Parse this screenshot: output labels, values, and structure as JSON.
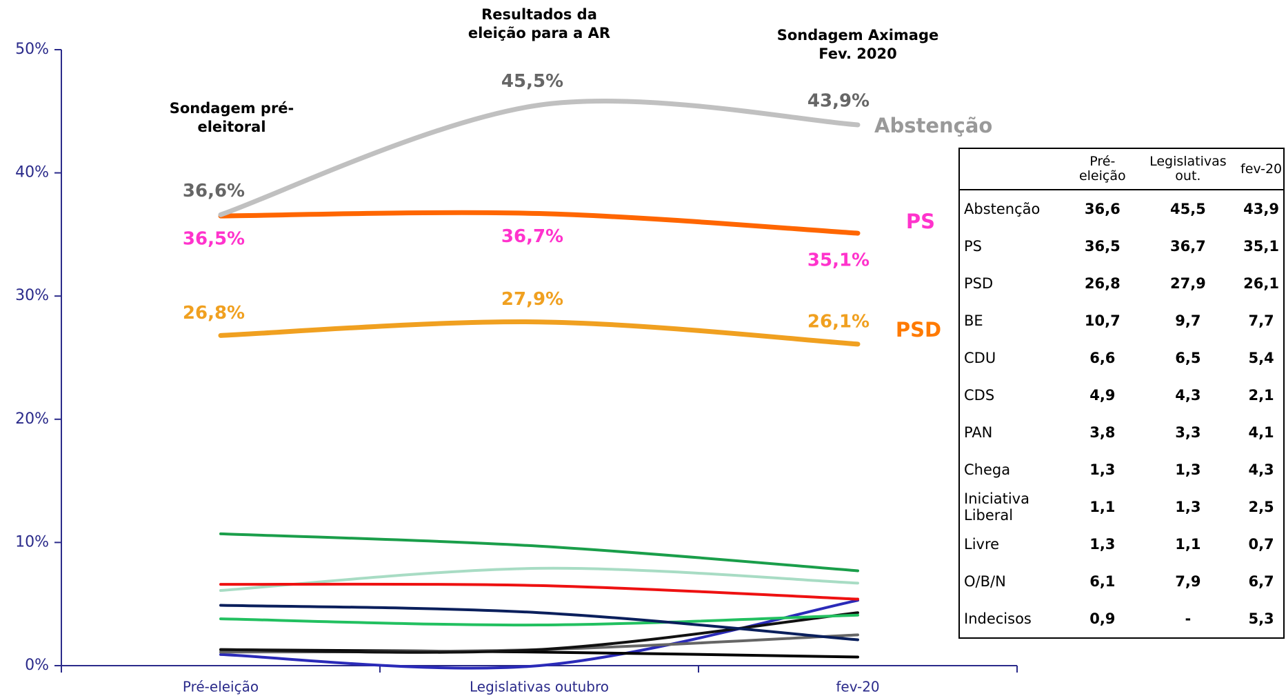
{
  "chart_data": {
    "type": "line",
    "categories": [
      "Pré-eleição",
      "Legislativas outubro",
      "fev-20"
    ],
    "ylim": [
      0,
      50
    ],
    "yticks": [
      {
        "value": 0,
        "label": "0%"
      },
      {
        "value": 10,
        "label": "10%"
      },
      {
        "value": 20,
        "label": "20%"
      },
      {
        "value": 30,
        "label": "30%"
      },
      {
        "value": 40,
        "label": "40%"
      },
      {
        "value": 50,
        "label": "50%"
      }
    ],
    "annotations": [
      [
        "Sondagem pré-",
        "eleitoral"
      ],
      [
        "Resultados da",
        "eleição para a AR"
      ],
      [
        "Sondagem Aximage",
        "Fev. 2020"
      ]
    ],
    "series": [
      {
        "name": "Abstenção",
        "color": "#c0c0c0",
        "label_color": "#666666",
        "values": [
          36.6,
          45.5,
          43.9
        ],
        "value_labels": [
          "36,6%",
          "45,5%",
          "43,9%"
        ]
      },
      {
        "name": "PS",
        "color": "#ff6600",
        "label_color": "#ff33cc",
        "values": [
          36.5,
          36.7,
          35.1
        ],
        "value_labels": [
          "36,5%",
          "36,7%",
          "35,1%"
        ]
      },
      {
        "name": "PSD",
        "color": "#f0a020",
        "label_color": "#f0a020",
        "values": [
          26.8,
          27.9,
          26.1
        ],
        "value_labels": [
          "26,8%",
          "27,9%",
          "26,1%"
        ]
      },
      {
        "color": "#1a9e4a",
        "values": [
          10.7,
          9.7,
          7.7
        ]
      },
      {
        "color": "#ee1111",
        "values": [
          6.6,
          6.5,
          5.4
        ]
      },
      {
        "color": "#0a1f5c",
        "values": [
          4.9,
          4.3,
          2.1
        ]
      },
      {
        "color": "#22c060",
        "values": [
          3.8,
          3.3,
          4.1
        ]
      },
      {
        "color": "#111111",
        "values": [
          1.3,
          1.3,
          4.3
        ]
      },
      {
        "color": "#666666",
        "values": [
          1.1,
          1.3,
          2.5
        ]
      },
      {
        "color": "#000000",
        "values": [
          1.3,
          1.1,
          0.7
        ]
      },
      {
        "color": "#a8dcc4",
        "values": [
          6.1,
          7.9,
          6.7
        ]
      },
      {
        "color": "#2a2ab8",
        "values": [
          0.9,
          0,
          5.3
        ]
      }
    ]
  },
  "table": {
    "header": [
      "Pré-eleição",
      "Legislativas out.",
      "fev-20"
    ],
    "rows": [
      [
        "Abstenção",
        "36,6",
        "45,5",
        "43,9"
      ],
      [
        "PS",
        "36,5",
        "36,7",
        "35,1"
      ],
      [
        "PSD",
        "26,8",
        "27,9",
        "26,1"
      ],
      [
        "BE",
        "10,7",
        "9,7",
        "7,7"
      ],
      [
        "CDU",
        "6,6",
        "6,5",
        "5,4"
      ],
      [
        "CDS",
        "4,9",
        "4,3",
        "2,1"
      ],
      [
        "PAN",
        "3,8",
        "3,3",
        "4,1"
      ],
      [
        "Chega",
        "1,3",
        "1,3",
        "4,3"
      ],
      [
        "Iniciativa Liberal",
        "1,1",
        "1,3",
        "2,5"
      ],
      [
        "Livre",
        "1,3",
        "1,1",
        "0,7"
      ],
      [
        "O/B/N",
        "6,1",
        "7,9",
        "6,7"
      ],
      [
        "Indecisos",
        "0,9",
        "-",
        "5,3"
      ]
    ]
  }
}
